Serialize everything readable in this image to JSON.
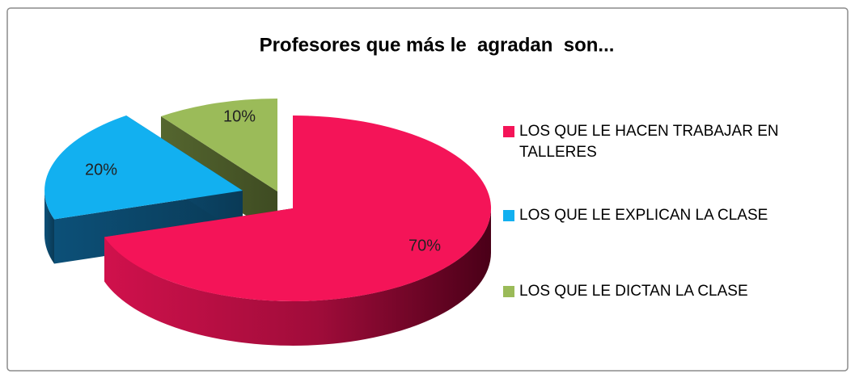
{
  "chart_data": {
    "type": "pie3d",
    "title": "Profesores que más le  agradan  son...",
    "categories": [
      "LOS QUE LE HACEN TRABAJAR EN TALLERES",
      "LOS QUE LE EXPLICAN LA CLASE",
      "LOS QUE LE DICTAN LA CLASE"
    ],
    "values": [
      70,
      20,
      10
    ],
    "value_labels": [
      "70%",
      "20%",
      "10%"
    ],
    "colors": [
      "#f41458",
      "#12b0f0",
      "#9bbb59"
    ],
    "legend": "right"
  }
}
